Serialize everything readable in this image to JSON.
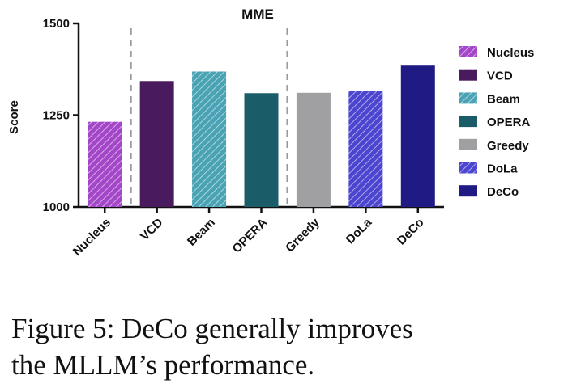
{
  "chart_data": {
    "type": "bar",
    "title": "MME",
    "xlabel": "",
    "ylabel": "Score",
    "ylim": [
      1000,
      1500
    ],
    "yticks": [
      "1000",
      "1250",
      "1500"
    ],
    "categories": [
      "Nucleus",
      "VCD",
      "Beam",
      "OPERA",
      "Greedy",
      "DoLa",
      "DeCo"
    ],
    "values": [
      1232,
      1343,
      1369,
      1310,
      1311,
      1317,
      1385
    ],
    "hatched": [
      true,
      false,
      true,
      false,
      false,
      true,
      false
    ],
    "colors": [
      "#a347c8",
      "#4a1a5e",
      "#4aa3b5",
      "#1a5d68",
      "#a0a0a2",
      "#4b45cf",
      "#1f1a84"
    ],
    "group_separators_after": [
      "Nucleus",
      "OPERA"
    ],
    "legend": {
      "placement": "right",
      "entries": [
        "Nucleus",
        "VCD",
        "Beam",
        "OPERA",
        "Greedy",
        "DoLa",
        "DeCo"
      ]
    },
    "grid": false
  },
  "caption": {
    "line1": "Figure 5: DeCo generally improves",
    "line2": "the MLLM’s performance."
  }
}
